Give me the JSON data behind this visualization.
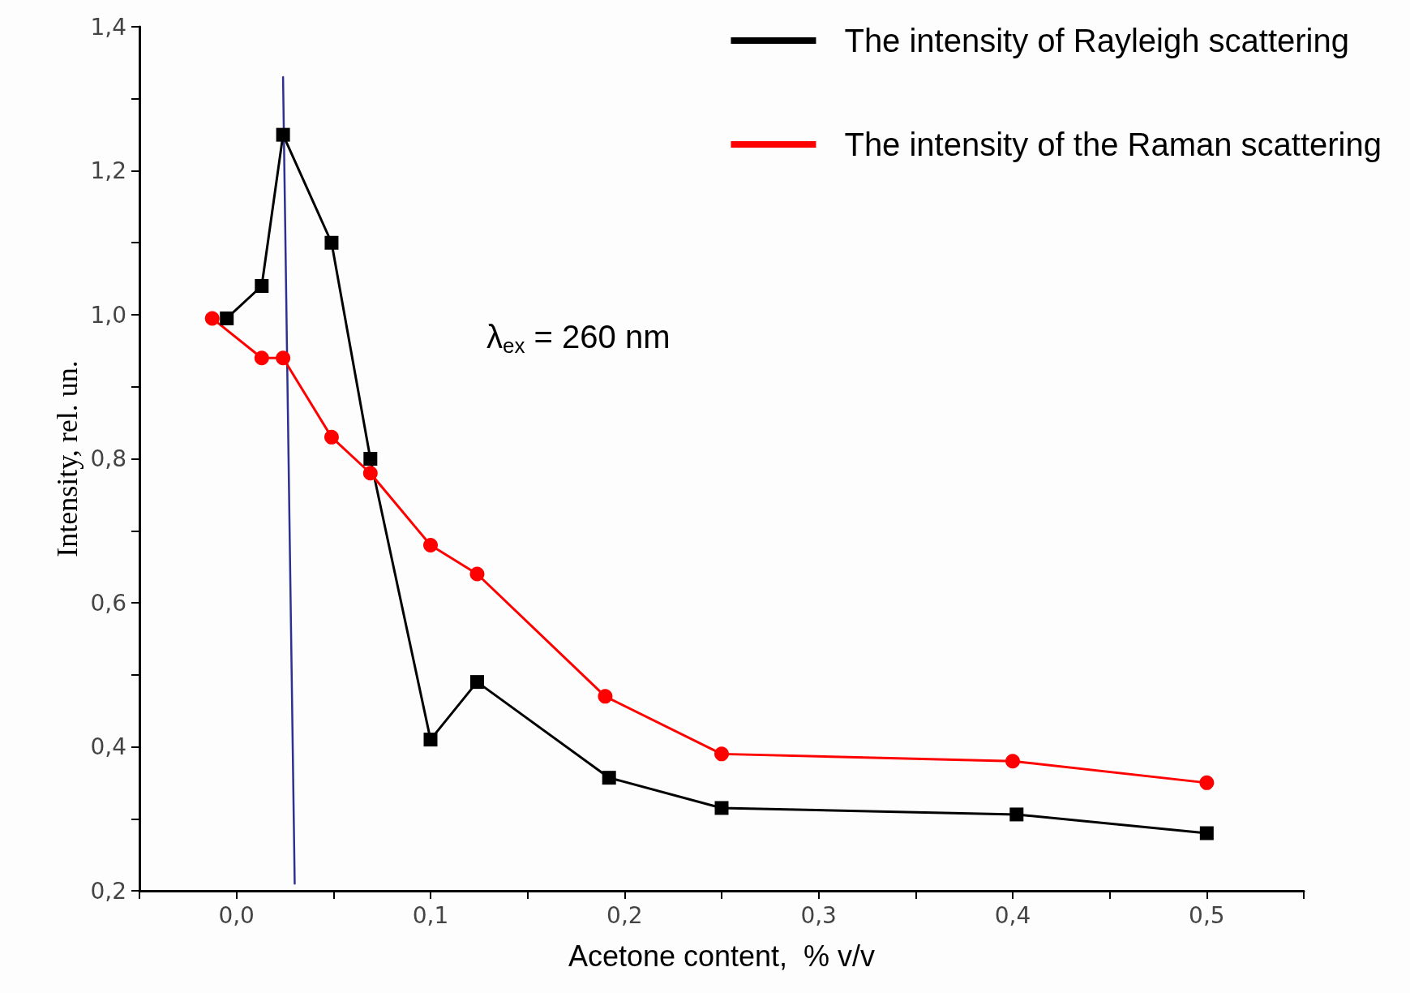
{
  "chart_data": {
    "type": "line",
    "xlabel": "Acetone content,  % v/v",
    "ylabel": "Intensity, rel. un.",
    "annotations": [
      "λ$_{ex}$ = 260 nm"
    ],
    "xlim": [
      -0.05,
      0.55
    ],
    "ylim": [
      0.2,
      1.4
    ],
    "xticks": [
      {
        "value": -0.05,
        "label": null
      },
      {
        "value": 0,
        "label": "0,0"
      },
      {
        "value": 0.05,
        "label": null
      },
      {
        "value": 0.1,
        "label": "0,1"
      },
      {
        "value": 0.15,
        "label": null
      },
      {
        "value": 0.2,
        "label": "0,2"
      },
      {
        "value": 0.25,
        "label": null
      },
      {
        "value": 0.3,
        "label": "0,3"
      },
      {
        "value": 0.35,
        "label": null
      },
      {
        "value": 0.4,
        "label": "0,4"
      },
      {
        "value": 0.45,
        "label": null
      },
      {
        "value": 0.5,
        "label": "0,5"
      },
      {
        "value": 0.55,
        "label": null
      }
    ],
    "yticks": [
      {
        "value": 0.2,
        "label": "0,2"
      },
      {
        "value": 0.3,
        "label": null
      },
      {
        "value": 0.4,
        "label": "0,4"
      },
      {
        "value": 0.5,
        "label": null
      },
      {
        "value": 0.6,
        "label": "0,6"
      },
      {
        "value": 0.7,
        "label": null
      },
      {
        "value": 0.8,
        "label": "0,8"
      },
      {
        "value": 0.9,
        "label": null
      },
      {
        "value": 1.0,
        "label": "1,0"
      },
      {
        "value": 1.1,
        "label": null
      },
      {
        "value": 1.2,
        "label": "1,2"
      },
      {
        "value": 1.3,
        "label": null
      },
      {
        "value": 1.4,
        "label": "1,4"
      }
    ],
    "grid": false,
    "legend": "top right",
    "line_style": "solid",
    "series": [
      {
        "name": "The intensity of Rayleigh scattering",
        "color": "#000000",
        "marker": "square",
        "x": [
          -0.005,
          0.013,
          0.024,
          0.049,
          0.069,
          0.1,
          0.124,
          0.192,
          0.25,
          0.402,
          0.5
        ],
        "values": [
          0.995,
          1.04,
          1.25,
          1.1,
          0.8,
          0.41,
          0.49,
          0.357,
          0.315,
          0.306,
          0.28
        ]
      },
      {
        "name": "The intensity of the Raman scattering",
        "color": "#ff0000",
        "marker": "circle",
        "x": [
          -0.0125,
          0.013,
          0.024,
          0.049,
          0.069,
          0.1,
          0.124,
          0.19,
          0.25,
          0.4,
          0.5
        ],
        "values": [
          0.995,
          0.94,
          0.94,
          0.83,
          0.78,
          0.68,
          0.64,
          0.47,
          0.39,
          0.38,
          0.35
        ]
      },
      {
        "color": "#2e3192",
        "marker": "none",
        "x": [
          0.024,
          0.03
        ],
        "values": [
          1.33,
          0.21
        ]
      }
    ]
  }
}
